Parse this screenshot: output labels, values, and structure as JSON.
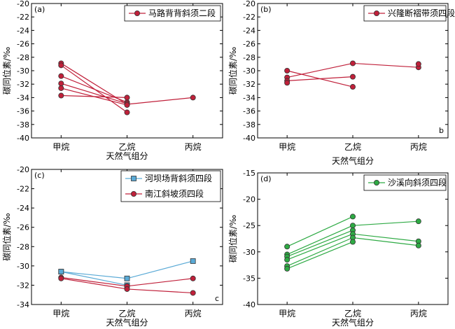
{
  "colors": {
    "red": "#c0203a",
    "blue": "#5aaad6",
    "green": "#2eaa44"
  },
  "chart_data": [
    {
      "type": "line",
      "panel_label": "(a)",
      "corner_label": "",
      "categories": [
        "甲烷",
        "乙烷",
        "丙烷"
      ],
      "xlabel": "天然气组分",
      "ylabel": "碳同位素/‰",
      "ylim": [
        -40,
        -20
      ],
      "yticks": [
        -40,
        -38,
        -36,
        -34,
        -32,
        -30,
        -28,
        -26,
        -24,
        -22,
        -20
      ],
      "legend_placement": "top-right",
      "series_groups": [
        {
          "name": "马路背背斜须二段",
          "color": "red",
          "marker": "circle",
          "lines": [
            [
              -28.9,
              -35.0,
              -34.0
            ],
            [
              -29.2,
              -36.2,
              null
            ],
            [
              -30.8,
              -34.7,
              null
            ],
            [
              -31.9,
              -34.9,
              null
            ],
            [
              -32.6,
              -35.1,
              null
            ],
            [
              -33.7,
              -34.0,
              null
            ]
          ]
        }
      ]
    },
    {
      "type": "line",
      "panel_label": "(b)",
      "corner_label": "b",
      "categories": [
        "甲烷",
        "乙烷",
        "丙烷"
      ],
      "xlabel": "天然气组分",
      "ylabel": "碳同位素/‰",
      "ylim": [
        -40,
        -20
      ],
      "yticks": [
        -40,
        -38,
        -36,
        -34,
        -32,
        -30,
        -28,
        -26,
        -24,
        -22,
        -20
      ],
      "legend_placement": "top-right",
      "series_groups": [
        {
          "name": "兴隆断褶带须四段",
          "color": "red",
          "marker": "circle",
          "lines": [
            [
              -31.0,
              -28.9,
              -29.5
            ],
            [
              -31.5,
              -30.9,
              null
            ],
            [
              -30.0,
              -32.4,
              null
            ],
            [
              -31.8,
              null,
              -29.0
            ]
          ]
        }
      ]
    },
    {
      "type": "line",
      "panel_label": "(c)",
      "corner_label": "c",
      "categories": [
        "甲烷",
        "乙烷",
        "丙烷"
      ],
      "xlabel": "天然气组分",
      "ylabel": "碳同位素/‰",
      "ylim": [
        -34,
        -20
      ],
      "yticks": [
        -34,
        -32,
        -30,
        -28,
        -26,
        -24,
        -22,
        -20
      ],
      "legend_placement": "top-right",
      "series_groups": [
        {
          "name": "河坝场背斜须四段",
          "color": "blue",
          "marker": "square",
          "lines": [
            [
              -30.6,
              -31.3,
              -29.5
            ],
            [
              -30.6,
              -32.0,
              null
            ]
          ]
        },
        {
          "name": "南江斜坡须四段",
          "color": "red",
          "marker": "circle",
          "lines": [
            [
              -31.2,
              -32.1,
              -31.3
            ],
            [
              -31.3,
              -32.4,
              -32.8
            ]
          ]
        }
      ]
    },
    {
      "type": "line",
      "panel_label": "(d)",
      "corner_label": "",
      "categories": [
        "甲烷",
        "乙烷",
        "丙烷"
      ],
      "xlabel": "天然气组分",
      "ylabel": "碳同位素/‰",
      "ylim": [
        -40,
        -15
      ],
      "yticks": [
        -40,
        -35,
        -30,
        -25,
        -20,
        -15
      ],
      "legend_placement": "top-right",
      "series_groups": [
        {
          "name": "沙溪向斜须四段",
          "color": "green",
          "marker": "circle",
          "lines": [
            [
              -29.0,
              -23.3,
              null
            ],
            [
              -30.5,
              -25.0,
              -24.2
            ],
            [
              -30.9,
              -25.9,
              null
            ],
            [
              -31.5,
              -26.6,
              -28.0
            ],
            [
              -32.7,
              -27.3,
              -28.8
            ],
            [
              -33.2,
              -28.1,
              null
            ]
          ]
        }
      ]
    }
  ]
}
